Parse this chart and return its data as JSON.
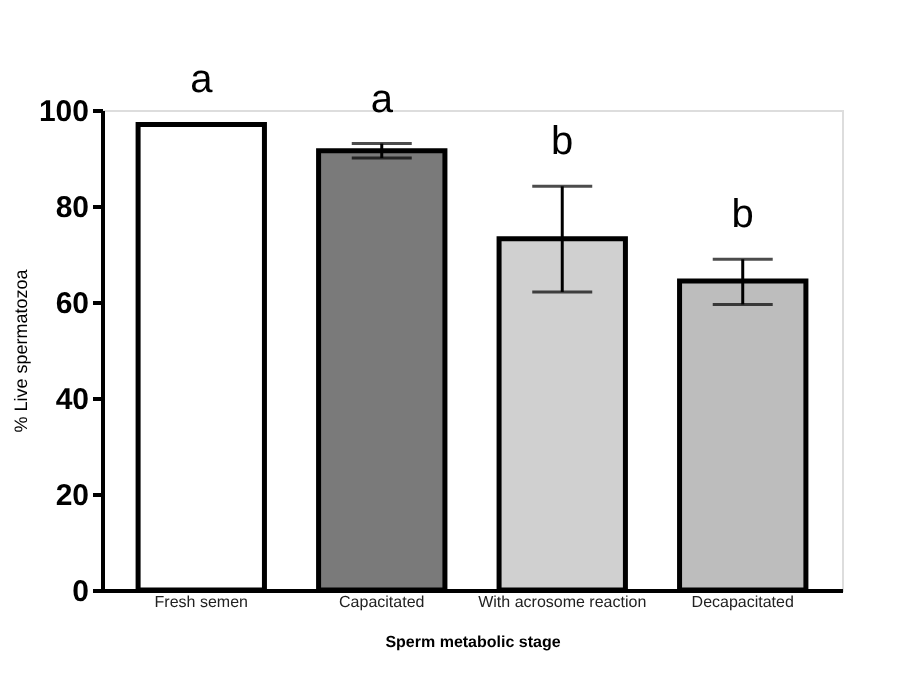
{
  "chart_data": {
    "type": "bar",
    "categories": [
      "Fresh semen",
      "Capacitated",
      "With  acrosome reaction",
      "Decapacitated"
    ],
    "values": [
      97,
      91.5,
      73.2,
      64.4
    ],
    "colors": [
      "#ffffff",
      "#7a7a7a",
      "#d0d0d0",
      "#bdbdbd"
    ],
    "errors": [
      null,
      [
        90,
        93
      ],
      [
        62.1,
        84.1
      ],
      [
        59.5,
        68.9
      ]
    ],
    "xlabel": "Sperm metabolic stage",
    "ylabel": "% Live spermatozoa",
    "ylim": [
      0,
      100
    ],
    "yticks": [
      0,
      20,
      40,
      60,
      80,
      100
    ],
    "grid": false,
    "annotations": [
      "a",
      "a",
      "b",
      "b"
    ]
  }
}
